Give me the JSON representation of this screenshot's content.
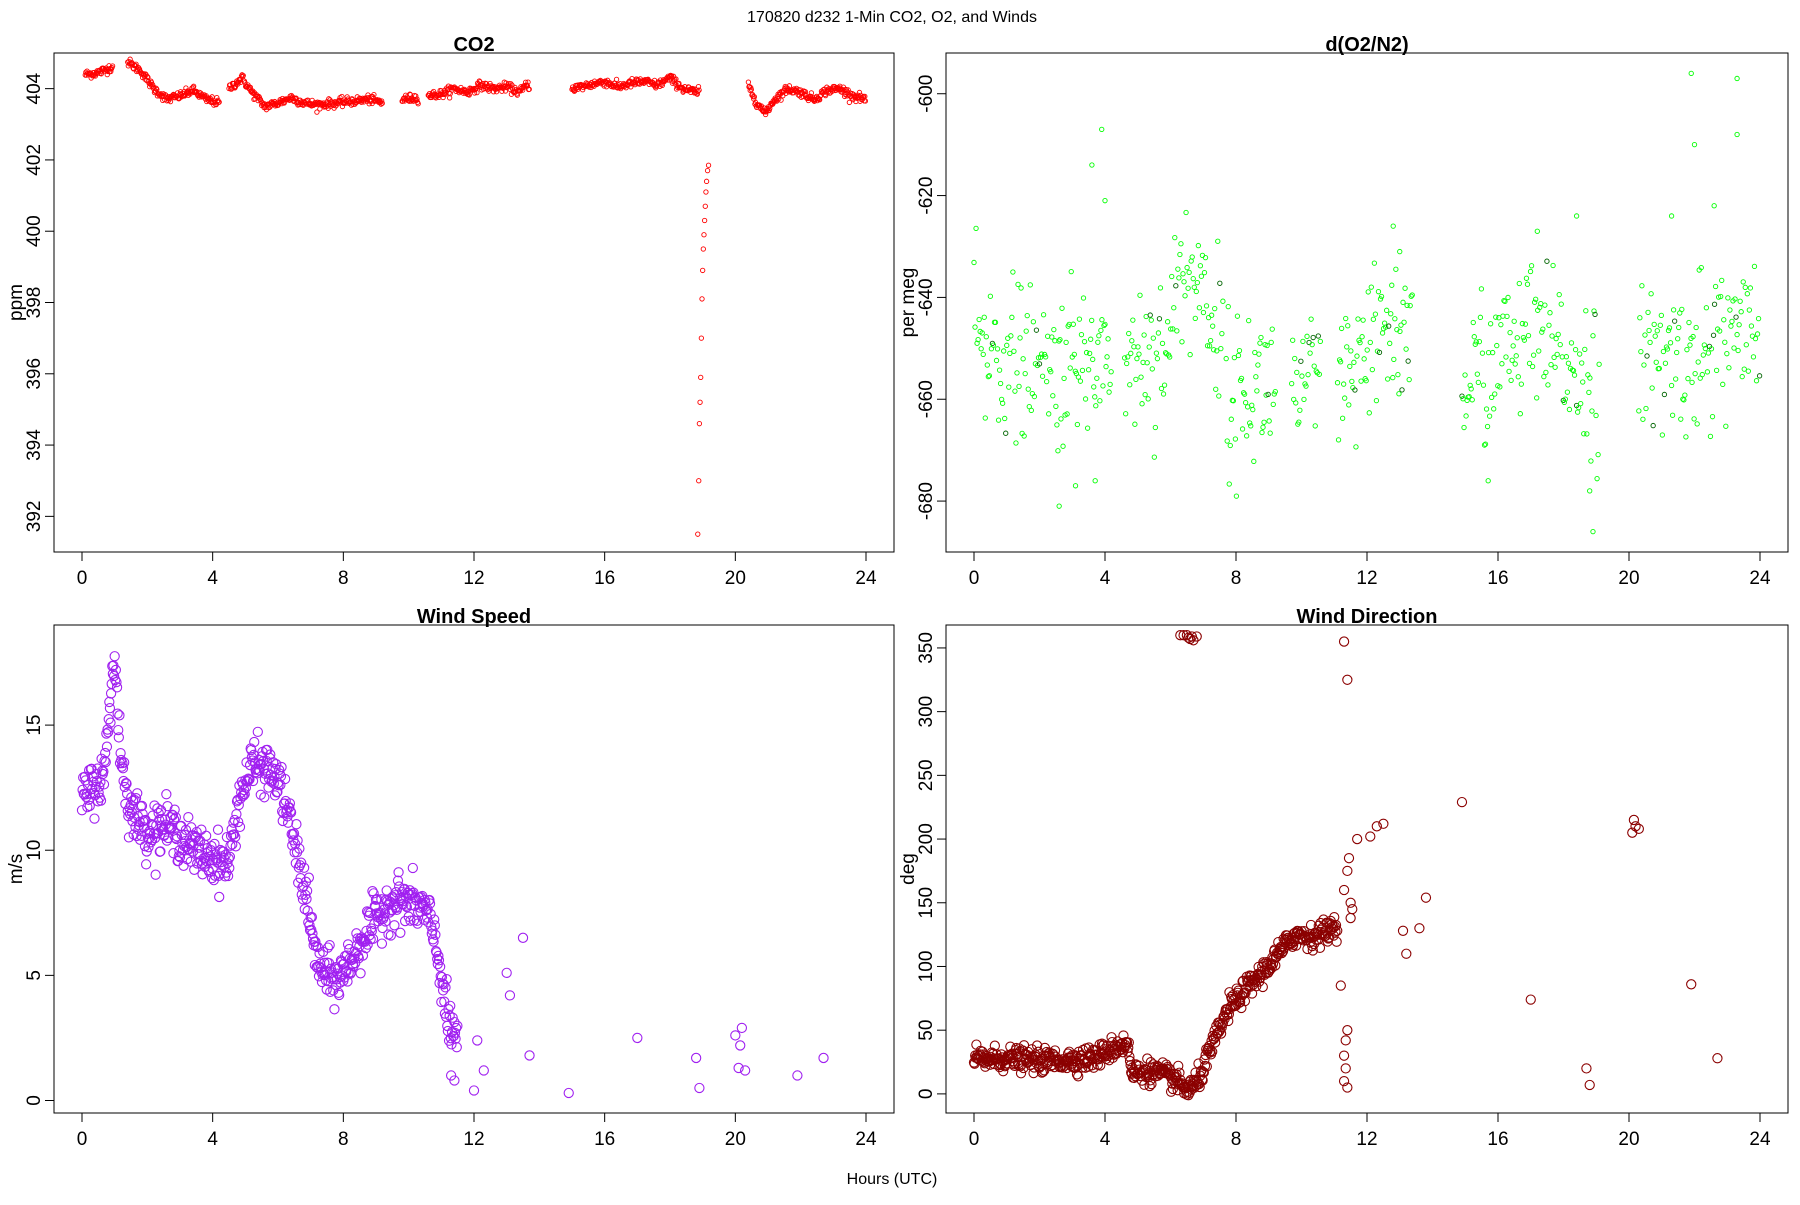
{
  "figure": {
    "title": "170820   d232   1-Min CO2, O2, and Winds",
    "xlabel": "Hours (UTC)"
  },
  "colors": {
    "co2": "#ff0000",
    "o2": "#00ff00",
    "o2_dark": "#006400",
    "wind_speed": "#a020f0",
    "wind_direction": "#8b0000",
    "axis": "#000000",
    "background": "#ffffff"
  },
  "chart_data": [
    {
      "id": "co2",
      "type": "scatter",
      "title": "CO2",
      "xlabel": "",
      "ylabel": "ppm",
      "xlim": [
        0,
        24
      ],
      "ylim": [
        391,
        405
      ],
      "xticks": [
        0,
        4,
        8,
        12,
        16,
        20,
        24
      ],
      "yticks": [
        392,
        394,
        396,
        398,
        400,
        402,
        404
      ],
      "color": "#ff0000",
      "marker": "circle-open-small",
      "grid": false,
      "anchors": [
        [
          0.1,
          404.4
        ],
        [
          0.5,
          404.45
        ],
        [
          0.9,
          404.6
        ],
        [
          1.4,
          404.75
        ],
        [
          1.8,
          404.5
        ],
        [
          2.2,
          404.0
        ],
        [
          2.6,
          403.7
        ],
        [
          3.0,
          403.8
        ],
        [
          3.4,
          403.95
        ],
        [
          3.8,
          403.7
        ],
        [
          4.2,
          403.6
        ],
        [
          4.5,
          404.0
        ],
        [
          4.9,
          404.3
        ],
        [
          5.2,
          403.9
        ],
        [
          5.6,
          403.5
        ],
        [
          6.0,
          403.6
        ],
        [
          6.4,
          403.75
        ],
        [
          6.8,
          403.6
        ],
        [
          7.2,
          403.55
        ],
        [
          7.8,
          403.6
        ],
        [
          8.3,
          403.65
        ],
        [
          8.8,
          403.7
        ],
        [
          9.2,
          403.6
        ],
        [
          9.8,
          403.7
        ],
        [
          10.3,
          403.75
        ],
        [
          10.6,
          403.8
        ],
        [
          11.0,
          403.85
        ],
        [
          11.4,
          404.0
        ],
        [
          11.8,
          403.9
        ],
        [
          12.2,
          404.1
        ],
        [
          12.6,
          404.0
        ],
        [
          13.0,
          404.05
        ],
        [
          13.4,
          403.9
        ],
        [
          13.6,
          404.1
        ],
        [
          15.0,
          404.0
        ],
        [
          15.5,
          404.1
        ],
        [
          16.0,
          404.2
        ],
        [
          16.4,
          404.05
        ],
        [
          16.8,
          404.15
        ],
        [
          17.2,
          404.2
        ],
        [
          17.6,
          404.1
        ],
        [
          18.0,
          404.3
        ],
        [
          18.4,
          404.0
        ],
        [
          18.8,
          403.9
        ],
        [
          20.4,
          404.1
        ],
        [
          20.6,
          403.7
        ],
        [
          20.9,
          403.3
        ],
        [
          21.2,
          403.7
        ],
        [
          21.6,
          404.0
        ],
        [
          22.0,
          403.9
        ],
        [
          22.4,
          403.7
        ],
        [
          22.8,
          403.95
        ],
        [
          23.2,
          404.0
        ],
        [
          23.6,
          403.8
        ],
        [
          24.0,
          403.7
        ]
      ],
      "segments": [
        [
          0.1,
          0.95
        ],
        [
          1.4,
          4.2
        ],
        [
          4.5,
          9.2
        ],
        [
          9.8,
          10.3
        ],
        [
          10.6,
          13.7
        ],
        [
          15.0,
          18.9
        ],
        [
          20.4,
          24.0
        ]
      ],
      "density_per_hour": 55,
      "jitter": 0.06,
      "outliers": [
        [
          18.85,
          391.5
        ],
        [
          18.88,
          393.0
        ],
        [
          18.9,
          394.6
        ],
        [
          18.92,
          395.2
        ],
        [
          18.94,
          395.9
        ],
        [
          18.96,
          397.0
        ],
        [
          18.98,
          398.1
        ],
        [
          19.0,
          398.9
        ],
        [
          19.02,
          399.5
        ],
        [
          19.04,
          399.9
        ],
        [
          19.06,
          400.3
        ],
        [
          19.08,
          400.7
        ],
        [
          19.1,
          401.1
        ],
        [
          19.12,
          401.4
        ],
        [
          19.15,
          401.7
        ],
        [
          19.18,
          401.85
        ]
      ]
    },
    {
      "id": "o2",
      "type": "scatter",
      "title": "d(O2/N2)",
      "xlabel": "",
      "ylabel": "per meg",
      "xlim": [
        0,
        24
      ],
      "ylim": [
        -690,
        -592
      ],
      "xticks": [
        0,
        4,
        8,
        12,
        16,
        20,
        24
      ],
      "yticks": [
        -600,
        -620,
        -640,
        -660,
        -680
      ],
      "color": "#00ff00",
      "dark_color": "#006400",
      "marker": "circle-open-small",
      "grid": false,
      "anchors": [
        [
          0.0,
          -650
        ],
        [
          1.0,
          -652
        ],
        [
          2.0,
          -655
        ],
        [
          3.0,
          -654
        ],
        [
          4.0,
          -651
        ],
        [
          4.6,
          -653
        ],
        [
          5.5,
          -650
        ],
        [
          6.0,
          -648
        ],
        [
          6.3,
          -635
        ],
        [
          7.0,
          -638
        ],
        [
          7.6,
          -650
        ],
        [
          7.8,
          -660
        ],
        [
          8.5,
          -658
        ],
        [
          9.2,
          -656
        ],
        [
          9.7,
          -657
        ],
        [
          10.5,
          -658
        ],
        [
          11.2,
          -658
        ],
        [
          12.0,
          -654
        ],
        [
          12.5,
          -645
        ],
        [
          13.3,
          -648
        ],
        [
          14.9,
          -657
        ],
        [
          16.0,
          -652
        ],
        [
          17.0,
          -648
        ],
        [
          18.0,
          -652
        ],
        [
          19.0,
          -656
        ],
        [
          20.3,
          -654
        ],
        [
          21.5,
          -652
        ],
        [
          22.5,
          -650
        ],
        [
          23.2,
          -646
        ],
        [
          24.0,
          -652
        ]
      ],
      "segments": [
        [
          0.0,
          4.2
        ],
        [
          4.6,
          7.6
        ],
        [
          7.7,
          9.2
        ],
        [
          9.7,
          10.6
        ],
        [
          11.1,
          13.4
        ],
        [
          14.9,
          19.1
        ],
        [
          20.3,
          24.0
        ]
      ],
      "density_per_hour": 32,
      "jitter": 7.5,
      "outliers": [
        [
          3.9,
          -607
        ],
        [
          3.6,
          -614
        ],
        [
          4.0,
          -621
        ],
        [
          2.6,
          -681
        ],
        [
          3.1,
          -677
        ],
        [
          3.7,
          -676
        ],
        [
          18.9,
          -686
        ],
        [
          18.8,
          -678
        ],
        [
          15.7,
          -676
        ],
        [
          21.9,
          -596
        ],
        [
          23.3,
          -597
        ],
        [
          23.3,
          -608
        ],
        [
          22.0,
          -610
        ],
        [
          22.6,
          -622
        ],
        [
          21.3,
          -624
        ],
        [
          12.8,
          -626
        ],
        [
          13.0,
          -631
        ],
        [
          18.4,
          -624
        ],
        [
          17.2,
          -627
        ]
      ]
    },
    {
      "id": "wind_speed",
      "type": "scatter",
      "title": "Wind Speed",
      "xlabel": "",
      "ylabel": "m/s",
      "xlim": [
        0,
        24
      ],
      "ylim": [
        -0.5,
        19
      ],
      "xticks": [
        0,
        4,
        8,
        12,
        16,
        20,
        24
      ],
      "yticks": [
        0,
        5,
        10,
        15
      ],
      "color": "#a020f0",
      "marker": "circle-open",
      "grid": false,
      "anchors": [
        [
          0.0,
          12.0
        ],
        [
          0.4,
          12.6
        ],
        [
          0.7,
          13.0
        ],
        [
          0.8,
          15.0
        ],
        [
          0.95,
          17.5
        ],
        [
          1.05,
          16.8
        ],
        [
          1.2,
          13.5
        ],
        [
          1.5,
          11.5
        ],
        [
          2.0,
          10.8
        ],
        [
          2.5,
          11.0
        ],
        [
          3.0,
          10.6
        ],
        [
          3.4,
          10.0
        ],
        [
          3.8,
          9.8
        ],
        [
          4.2,
          9.6
        ],
        [
          4.5,
          9.5
        ],
        [
          4.8,
          12.0
        ],
        [
          5.2,
          13.4
        ],
        [
          5.6,
          13.3
        ],
        [
          6.0,
          12.8
        ],
        [
          6.3,
          11.5
        ],
        [
          6.6,
          9.7
        ],
        [
          6.9,
          8.0
        ],
        [
          7.1,
          6.0
        ],
        [
          7.4,
          5.0
        ],
        [
          7.8,
          4.8
        ],
        [
          8.2,
          5.5
        ],
        [
          8.6,
          6.5
        ],
        [
          9.0,
          7.2
        ],
        [
          9.4,
          7.9
        ],
        [
          9.8,
          8.0
        ],
        [
          10.2,
          7.8
        ],
        [
          10.5,
          7.6
        ],
        [
          10.8,
          6.5
        ],
        [
          11.0,
          5.0
        ],
        [
          11.2,
          3.0
        ],
        [
          11.5,
          2.5
        ]
      ],
      "segments": [
        [
          0.0,
          11.5
        ]
      ],
      "density_per_hour": 55,
      "jitter": 0.5,
      "outliers": [
        [
          11.3,
          1.0
        ],
        [
          11.4,
          0.8
        ],
        [
          12.1,
          2.4
        ],
        [
          12.3,
          1.2
        ],
        [
          12.0,
          0.4
        ],
        [
          13.0,
          5.1
        ],
        [
          13.1,
          4.2
        ],
        [
          13.5,
          6.5
        ],
        [
          13.7,
          1.8
        ],
        [
          14.9,
          0.3
        ],
        [
          17.0,
          2.5
        ],
        [
          18.8,
          1.7
        ],
        [
          18.9,
          0.5
        ],
        [
          20.0,
          2.6
        ],
        [
          20.2,
          2.9
        ],
        [
          20.15,
          2.2
        ],
        [
          20.1,
          1.3
        ],
        [
          20.3,
          1.2
        ],
        [
          21.9,
          1.0
        ],
        [
          22.7,
          1.7
        ]
      ]
    },
    {
      "id": "wind_direction",
      "type": "scatter",
      "title": "Wind Direction",
      "xlabel": "",
      "ylabel": "deg",
      "xlim": [
        0,
        24
      ],
      "ylim": [
        -15,
        368
      ],
      "xticks": [
        0,
        4,
        8,
        12,
        16,
        20,
        24
      ],
      "yticks": [
        0,
        50,
        100,
        150,
        200,
        250,
        300,
        350
      ],
      "color": "#8b0000",
      "marker": "circle-open",
      "grid": false,
      "anchors": [
        [
          0.0,
          27
        ],
        [
          1.0,
          28
        ],
        [
          2.0,
          26
        ],
        [
          3.0,
          27
        ],
        [
          3.6,
          28
        ],
        [
          4.0,
          32
        ],
        [
          4.4,
          38
        ],
        [
          4.7,
          40
        ],
        [
          4.8,
          16
        ],
        [
          5.3,
          18
        ],
        [
          5.8,
          15
        ],
        [
          6.2,
          10
        ],
        [
          6.5,
          3
        ],
        [
          6.8,
          8
        ],
        [
          7.0,
          20
        ],
        [
          7.4,
          45
        ],
        [
          7.8,
          68
        ],
        [
          8.3,
          82
        ],
        [
          8.8,
          95
        ],
        [
          9.3,
          110
        ],
        [
          9.8,
          125
        ],
        [
          10.3,
          123
        ],
        [
          10.8,
          128
        ],
        [
          11.1,
          135
        ]
      ],
      "segments": [
        [
          0.0,
          11.1
        ]
      ],
      "density_per_hour": 55,
      "jitter": 4.5,
      "outliers": [
        [
          6.3,
          360
        ],
        [
          6.4,
          360
        ],
        [
          6.5,
          360
        ],
        [
          6.55,
          358
        ],
        [
          6.6,
          357
        ],
        [
          6.65,
          359
        ],
        [
          6.7,
          356
        ],
        [
          6.8,
          359
        ],
        [
          11.2,
          85
        ],
        [
          11.3,
          355
        ],
        [
          11.4,
          325
        ],
        [
          11.3,
          30
        ],
        [
          11.35,
          20
        ],
        [
          11.3,
          10
        ],
        [
          11.4,
          5
        ],
        [
          11.35,
          42
        ],
        [
          11.4,
          50
        ],
        [
          11.3,
          160
        ],
        [
          11.4,
          175
        ],
        [
          11.45,
          185
        ],
        [
          11.5,
          150
        ],
        [
          11.55,
          145
        ],
        [
          11.5,
          138
        ],
        [
          11.7,
          200
        ],
        [
          12.1,
          202
        ],
        [
          12.3,
          210
        ],
        [
          12.5,
          212
        ],
        [
          13.1,
          128
        ],
        [
          13.2,
          110
        ],
        [
          13.6,
          130
        ],
        [
          13.8,
          154
        ],
        [
          14.9,
          229
        ],
        [
          17.0,
          74
        ],
        [
          18.7,
          20
        ],
        [
          18.8,
          7
        ],
        [
          20.1,
          205
        ],
        [
          20.2,
          210
        ],
        [
          20.15,
          215
        ],
        [
          20.3,
          208
        ],
        [
          21.9,
          86
        ],
        [
          22.7,
          28
        ]
      ]
    }
  ]
}
